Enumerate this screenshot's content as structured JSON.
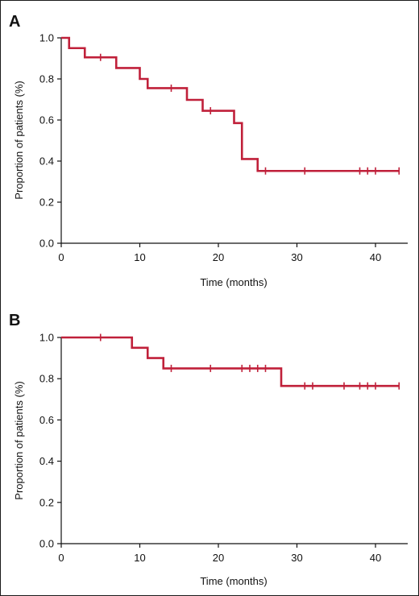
{
  "style": {
    "line_color": "#c0203a"
  },
  "chart_data": [
    {
      "type": "line",
      "step": true,
      "panel": "A",
      "xlabel": "Time (months)",
      "ylabel": "Proportion of patients (%)",
      "xlim": [
        0,
        44
      ],
      "ylim": [
        0,
        1
      ],
      "xticks": [
        "0",
        "10",
        "20",
        "30",
        "40"
      ],
      "yticks": [
        "0.0",
        "0.2",
        "0.4",
        "0.6",
        "0.8",
        "1.0"
      ],
      "series": [
        {
          "steps": [
            {
              "x": 0,
              "y": 1.0
            },
            {
              "x": 1,
              "y": 0.95
            },
            {
              "x": 3,
              "y": 0.905
            },
            {
              "x": 7,
              "y": 0.853
            },
            {
              "x": 10,
              "y": 0.8
            },
            {
              "x": 11,
              "y": 0.755
            },
            {
              "x": 16,
              "y": 0.698
            },
            {
              "x": 18,
              "y": 0.645
            },
            {
              "x": 22,
              "y": 0.585
            },
            {
              "x": 23,
              "y": 0.41
            },
            {
              "x": 25,
              "y": 0.352
            }
          ],
          "end_x": 43,
          "censored": [
            {
              "x": 5,
              "y": 0.905
            },
            {
              "x": 14,
              "y": 0.755
            },
            {
              "x": 19,
              "y": 0.645
            },
            {
              "x": 26,
              "y": 0.352
            },
            {
              "x": 31,
              "y": 0.352
            },
            {
              "x": 38,
              "y": 0.352
            },
            {
              "x": 39,
              "y": 0.352
            },
            {
              "x": 40,
              "y": 0.352
            },
            {
              "x": 43,
              "y": 0.352
            }
          ]
        }
      ]
    },
    {
      "type": "line",
      "step": true,
      "panel": "B",
      "xlabel": "Time (months)",
      "ylabel": "Proportion of patients (%)",
      "xlim": [
        0,
        44
      ],
      "ylim": [
        0,
        1
      ],
      "xticks": [
        "0",
        "10",
        "20",
        "30",
        "40"
      ],
      "yticks": [
        "0.0",
        "0.2",
        "0.4",
        "0.6",
        "0.8",
        "1.0"
      ],
      "series": [
        {
          "steps": [
            {
              "x": 0,
              "y": 1.0
            },
            {
              "x": 9,
              "y": 0.95
            },
            {
              "x": 11,
              "y": 0.9
            },
            {
              "x": 13,
              "y": 0.85
            },
            {
              "x": 28,
              "y": 0.765
            }
          ],
          "end_x": 43,
          "censored": [
            {
              "x": 5,
              "y": 1.0
            },
            {
              "x": 14,
              "y": 0.85
            },
            {
              "x": 19,
              "y": 0.85
            },
            {
              "x": 23,
              "y": 0.85
            },
            {
              "x": 24,
              "y": 0.85
            },
            {
              "x": 25,
              "y": 0.85
            },
            {
              "x": 26,
              "y": 0.85
            },
            {
              "x": 31,
              "y": 0.765
            },
            {
              "x": 32,
              "y": 0.765
            },
            {
              "x": 36,
              "y": 0.765
            },
            {
              "x": 38,
              "y": 0.765
            },
            {
              "x": 39,
              "y": 0.765
            },
            {
              "x": 40,
              "y": 0.765
            },
            {
              "x": 43,
              "y": 0.765
            }
          ]
        }
      ]
    }
  ]
}
